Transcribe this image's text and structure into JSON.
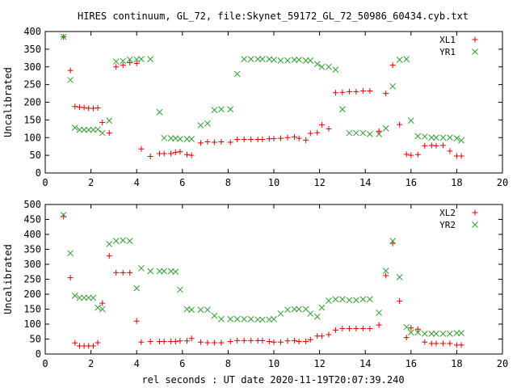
{
  "title": "HIRES continuum, GL_72, file:Skynet_59172_GL_72_50986_60434.cyb.txt",
  "xlabel": "rel seconds : UT date 2020-11-19T20:07:39.240",
  "colors": {
    "red": "#e00000",
    "green": "#2e9e2e"
  },
  "chart_data": [
    {
      "type": "scatter",
      "ylabel": "Uncalibrated",
      "xlim": [
        0,
        20
      ],
      "ylim": [
        0,
        400
      ],
      "xticks": [
        0,
        2,
        4,
        6,
        8,
        10,
        12,
        14,
        16,
        18,
        20
      ],
      "yticks": [
        0,
        50,
        100,
        150,
        200,
        250,
        300,
        350,
        400
      ],
      "legend_position": "top-right",
      "series": [
        {
          "name": "XL1",
          "marker": "plus",
          "color": "#e00000",
          "x": [
            0.8,
            1.1,
            1.3,
            1.5,
            1.7,
            1.9,
            2.1,
            2.3,
            2.5,
            2.8,
            3.1,
            3.4,
            3.7,
            4.0,
            4.2,
            4.6,
            5.0,
            5.2,
            5.5,
            5.7,
            5.9,
            6.2,
            6.4,
            6.8,
            7.1,
            7.4,
            7.7,
            8.1,
            8.4,
            8.7,
            9.0,
            9.3,
            9.5,
            9.8,
            10.0,
            10.3,
            10.6,
            10.9,
            11.1,
            11.4,
            11.6,
            11.9,
            12.1,
            12.4,
            12.7,
            13.0,
            13.3,
            13.6,
            13.9,
            14.2,
            14.6,
            14.9,
            15.2,
            15.5,
            15.8,
            16.0,
            16.3,
            16.6,
            16.9,
            17.1,
            17.4,
            17.7,
            18.0,
            18.2
          ],
          "y": [
            385,
            290,
            188,
            186,
            185,
            183,
            183,
            184,
            143,
            113,
            300,
            305,
            312,
            310,
            68,
            47,
            55,
            55,
            55,
            58,
            60,
            52,
            50,
            85,
            88,
            87,
            88,
            87,
            95,
            95,
            95,
            95,
            95,
            97,
            97,
            98,
            100,
            102,
            98,
            93,
            112,
            114,
            136,
            125,
            227,
            228,
            230,
            230,
            232,
            232,
            118,
            225,
            305,
            137,
            53,
            50,
            52,
            77,
            78,
            77,
            78,
            62,
            48,
            48
          ]
        },
        {
          "name": "YR1",
          "marker": "cross",
          "color": "#2e9e2e",
          "x": [
            0.8,
            1.1,
            1.3,
            1.5,
            1.7,
            1.9,
            2.1,
            2.3,
            2.5,
            2.8,
            3.1,
            3.4,
            3.7,
            4.0,
            4.2,
            4.6,
            5.0,
            5.2,
            5.5,
            5.7,
            5.9,
            6.2,
            6.4,
            6.8,
            7.1,
            7.4,
            7.7,
            8.1,
            8.4,
            8.7,
            9.0,
            9.3,
            9.5,
            9.8,
            10.0,
            10.3,
            10.6,
            10.9,
            11.1,
            11.4,
            11.6,
            11.9,
            12.1,
            12.4,
            12.7,
            13.0,
            13.3,
            13.6,
            13.9,
            14.2,
            14.6,
            14.9,
            15.2,
            15.5,
            15.8,
            16.0,
            16.3,
            16.6,
            16.9,
            17.1,
            17.4,
            17.7,
            18.0,
            18.2
          ],
          "y": [
            385,
            263,
            128,
            122,
            122,
            122,
            122,
            123,
            113,
            148,
            315,
            317,
            321,
            321,
            322,
            322,
            172,
            99,
            98,
            98,
            96,
            96,
            96,
            135,
            140,
            178,
            180,
            180,
            280,
            322,
            322,
            322,
            322,
            322,
            320,
            318,
            318,
            320,
            320,
            318,
            318,
            308,
            300,
            300,
            292,
            180,
            113,
            113,
            113,
            110,
            110,
            126,
            245,
            320,
            322,
            148,
            104,
            103,
            100,
            100,
            100,
            100,
            98,
            92
          ]
        }
      ]
    },
    {
      "type": "scatter",
      "ylabel": "Uncalibrated",
      "xlim": [
        0,
        20
      ],
      "ylim": [
        0,
        500
      ],
      "xticks": [
        0,
        2,
        4,
        6,
        8,
        10,
        12,
        14,
        16,
        18,
        20
      ],
      "yticks": [
        0,
        50,
        100,
        150,
        200,
        250,
        300,
        350,
        400,
        450,
        500
      ],
      "legend_position": "top-right",
      "series": [
        {
          "name": "XL2",
          "marker": "plus",
          "color": "#e00000",
          "x": [
            0.8,
            1.1,
            1.3,
            1.5,
            1.7,
            1.9,
            2.1,
            2.3,
            2.5,
            2.8,
            3.1,
            3.4,
            3.7,
            4.0,
            4.2,
            4.6,
            5.0,
            5.2,
            5.5,
            5.7,
            5.9,
            6.2,
            6.4,
            6.8,
            7.1,
            7.4,
            7.7,
            8.1,
            8.4,
            8.7,
            9.0,
            9.3,
            9.5,
            9.8,
            10.0,
            10.3,
            10.6,
            10.9,
            11.1,
            11.4,
            11.6,
            11.9,
            12.1,
            12.4,
            12.7,
            13.0,
            13.3,
            13.6,
            13.9,
            14.2,
            14.6,
            14.9,
            15.2,
            15.5,
            15.8,
            16.0,
            16.3,
            16.6,
            16.9,
            17.1,
            17.4,
            17.7,
            18.0,
            18.2
          ],
          "y": [
            460,
            255,
            37,
            27,
            27,
            27,
            27,
            38,
            170,
            328,
            272,
            272,
            272,
            110,
            40,
            42,
            42,
            42,
            42,
            42,
            44,
            44,
            52,
            40,
            38,
            38,
            38,
            42,
            45,
            45,
            45,
            45,
            45,
            42,
            40,
            40,
            44,
            45,
            42,
            42,
            48,
            60,
            60,
            65,
            80,
            85,
            85,
            85,
            85,
            85,
            97,
            262,
            370,
            177,
            55,
            87,
            83,
            40,
            35,
            35,
            35,
            35,
            30,
            30
          ]
        },
        {
          "name": "YR2",
          "marker": "cross",
          "color": "#2e9e2e",
          "x": [
            0.8,
            1.1,
            1.3,
            1.5,
            1.7,
            1.9,
            2.1,
            2.3,
            2.5,
            2.8,
            3.1,
            3.4,
            3.7,
            4.0,
            4.2,
            4.6,
            5.0,
            5.2,
            5.5,
            5.7,
            5.9,
            6.2,
            6.4,
            6.8,
            7.1,
            7.4,
            7.7,
            8.1,
            8.4,
            8.7,
            9.0,
            9.3,
            9.5,
            9.8,
            10.0,
            10.3,
            10.6,
            10.9,
            11.1,
            11.4,
            11.6,
            11.9,
            12.1,
            12.4,
            12.7,
            13.0,
            13.3,
            13.6,
            13.9,
            14.2,
            14.6,
            14.9,
            15.2,
            15.5,
            15.8,
            16.0,
            16.3,
            16.6,
            16.9,
            17.1,
            17.4,
            17.7,
            18.0,
            18.2
          ],
          "y": [
            465,
            337,
            195,
            188,
            188,
            188,
            188,
            155,
            150,
            368,
            378,
            380,
            378,
            220,
            287,
            277,
            277,
            277,
            277,
            275,
            215,
            150,
            148,
            148,
            148,
            128,
            117,
            117,
            117,
            117,
            117,
            115,
            115,
            115,
            117,
            135,
            148,
            150,
            150,
            150,
            135,
            125,
            155,
            178,
            183,
            183,
            180,
            180,
            183,
            183,
            138,
            278,
            378,
            257,
            90,
            72,
            72,
            68,
            68,
            68,
            68,
            68,
            70,
            70
          ]
        }
      ]
    }
  ]
}
